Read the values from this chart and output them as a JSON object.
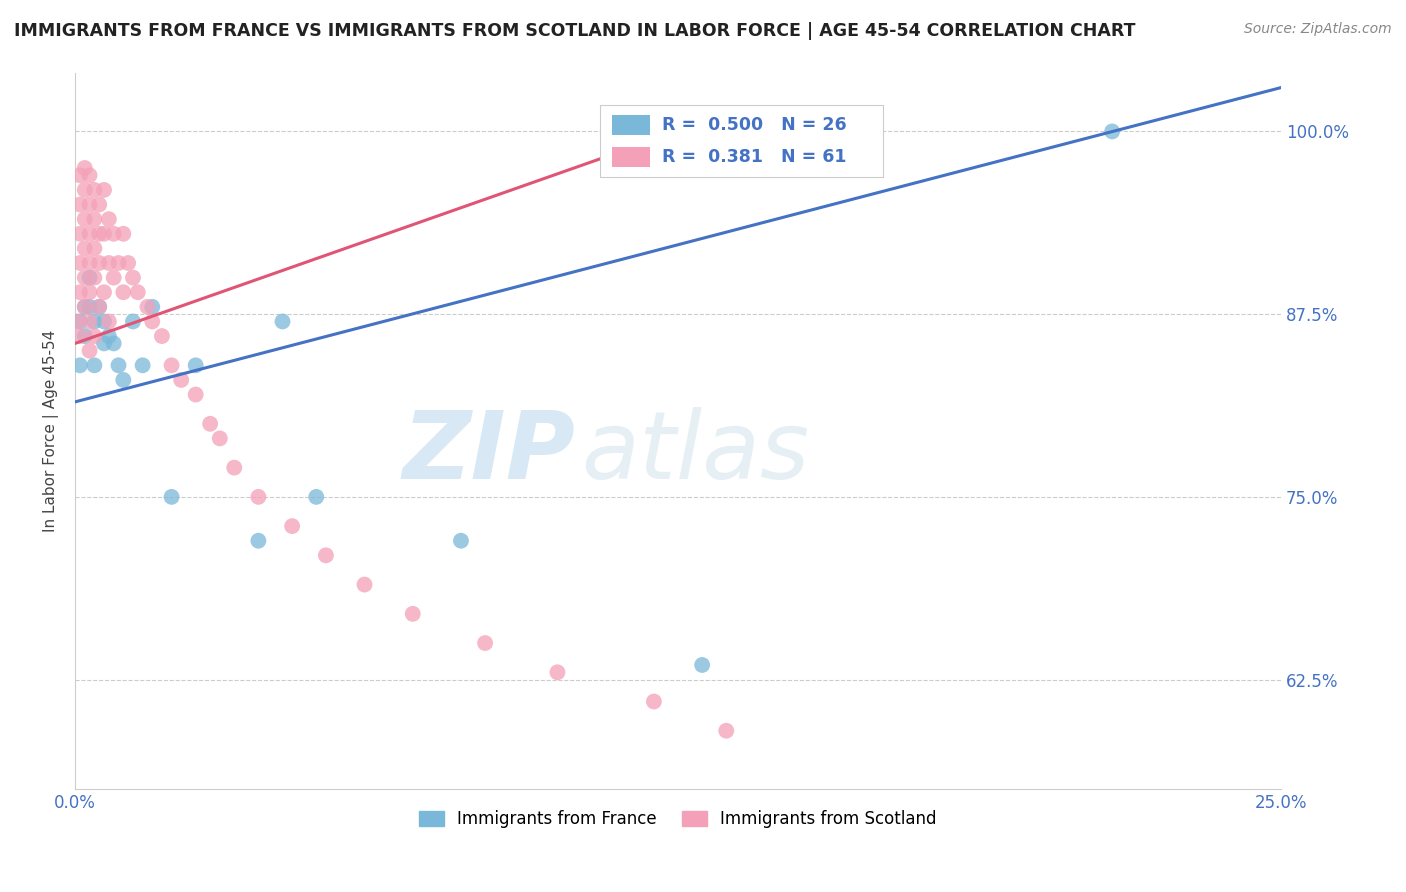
{
  "title": "IMMIGRANTS FROM FRANCE VS IMMIGRANTS FROM SCOTLAND IN LABOR FORCE | AGE 45-54 CORRELATION CHART",
  "source": "Source: ZipAtlas.com",
  "ylabel": "In Labor Force | Age 45-54",
  "xlim": [
    0.0,
    0.25
  ],
  "ylim": [
    0.55,
    1.04
  ],
  "xticks": [
    0.0,
    0.05,
    0.1,
    0.15,
    0.2,
    0.25
  ],
  "xticklabels": [
    "0.0%",
    "",
    "",
    "",
    "",
    "25.0%"
  ],
  "yticks": [
    0.625,
    0.75,
    0.875,
    1.0
  ],
  "yticklabels": [
    "62.5%",
    "75.0%",
    "87.5%",
    "100.0%"
  ],
  "france_R": 0.5,
  "france_N": 26,
  "scotland_R": 0.381,
  "scotland_N": 61,
  "france_color": "#7ab8d9",
  "scotland_color": "#f4a0b8",
  "france_line_color": "#4472c4",
  "scotland_line_color": "#e05575",
  "watermark_zip": "ZIP",
  "watermark_atlas": "atlas",
  "france_x": [
    0.001,
    0.001,
    0.002,
    0.002,
    0.003,
    0.003,
    0.004,
    0.004,
    0.005,
    0.006,
    0.006,
    0.007,
    0.008,
    0.009,
    0.01,
    0.012,
    0.014,
    0.016,
    0.02,
    0.025,
    0.038,
    0.043,
    0.05,
    0.08,
    0.13,
    0.215
  ],
  "france_y": [
    0.87,
    0.84,
    0.88,
    0.86,
    0.9,
    0.88,
    0.87,
    0.84,
    0.88,
    0.87,
    0.855,
    0.86,
    0.855,
    0.84,
    0.83,
    0.87,
    0.84,
    0.88,
    0.75,
    0.84,
    0.72,
    0.87,
    0.75,
    0.72,
    0.635,
    1.0
  ],
  "scotland_x": [
    0.0005,
    0.001,
    0.001,
    0.001,
    0.001,
    0.001,
    0.001,
    0.002,
    0.002,
    0.002,
    0.002,
    0.002,
    0.002,
    0.003,
    0.003,
    0.003,
    0.003,
    0.003,
    0.003,
    0.003,
    0.004,
    0.004,
    0.004,
    0.004,
    0.004,
    0.005,
    0.005,
    0.005,
    0.005,
    0.006,
    0.006,
    0.006,
    0.007,
    0.007,
    0.007,
    0.008,
    0.008,
    0.009,
    0.01,
    0.01,
    0.011,
    0.012,
    0.013,
    0.015,
    0.016,
    0.018,
    0.02,
    0.022,
    0.025,
    0.028,
    0.03,
    0.033,
    0.038,
    0.045,
    0.052,
    0.06,
    0.07,
    0.085,
    0.1,
    0.12,
    0.135
  ],
  "scotland_y": [
    0.87,
    0.97,
    0.95,
    0.93,
    0.91,
    0.89,
    0.86,
    0.975,
    0.96,
    0.94,
    0.92,
    0.9,
    0.88,
    0.97,
    0.95,
    0.93,
    0.91,
    0.89,
    0.87,
    0.85,
    0.96,
    0.94,
    0.92,
    0.9,
    0.86,
    0.95,
    0.93,
    0.91,
    0.88,
    0.96,
    0.93,
    0.89,
    0.94,
    0.91,
    0.87,
    0.93,
    0.9,
    0.91,
    0.93,
    0.89,
    0.91,
    0.9,
    0.89,
    0.88,
    0.87,
    0.86,
    0.84,
    0.83,
    0.82,
    0.8,
    0.79,
    0.77,
    0.75,
    0.73,
    0.71,
    0.69,
    0.67,
    0.65,
    0.63,
    0.61,
    0.59
  ]
}
